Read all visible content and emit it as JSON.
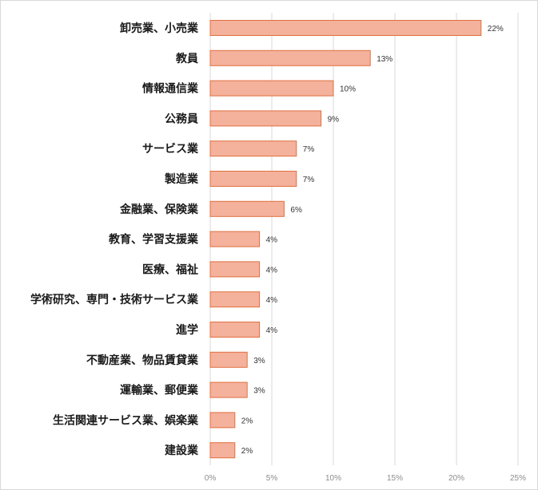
{
  "chart_data": {
    "type": "bar",
    "orientation": "horizontal",
    "categories": [
      "卸売業、小売業",
      "教員",
      "情報通信業",
      "公務員",
      "サービス業",
      "製造業",
      "金融業、保険業",
      "教育、学習支援業",
      "医療、福祉",
      "学術研究、専門・技術サービス業",
      "進学",
      "不動産業、物品賃貸業",
      "運輸業、郵便業",
      "生活関連サービス業、娯楽業",
      "建設業"
    ],
    "values": [
      22,
      13,
      10,
      9,
      7,
      7,
      6,
      4,
      4,
      4,
      4,
      3,
      3,
      2,
      2
    ],
    "data_labels": [
      "22%",
      "13%",
      "10%",
      "9%",
      "7%",
      "7%",
      "6%",
      "4%",
      "4%",
      "4%",
      "4%",
      "3%",
      "3%",
      "2%",
      "2%"
    ],
    "xlim": [
      0,
      25
    ],
    "xticks": [
      0,
      5,
      10,
      15,
      20,
      25
    ],
    "xtick_labels": [
      "0%",
      "5%",
      "10%",
      "15%",
      "20%",
      "25%"
    ],
    "grid": true,
    "legend": "none",
    "title": "",
    "xlabel": "",
    "ylabel": "",
    "colors": {
      "bar_fill": "#f4b19c",
      "bar_stroke": "#e0703f",
      "grid": "#d9d9d9"
    }
  }
}
